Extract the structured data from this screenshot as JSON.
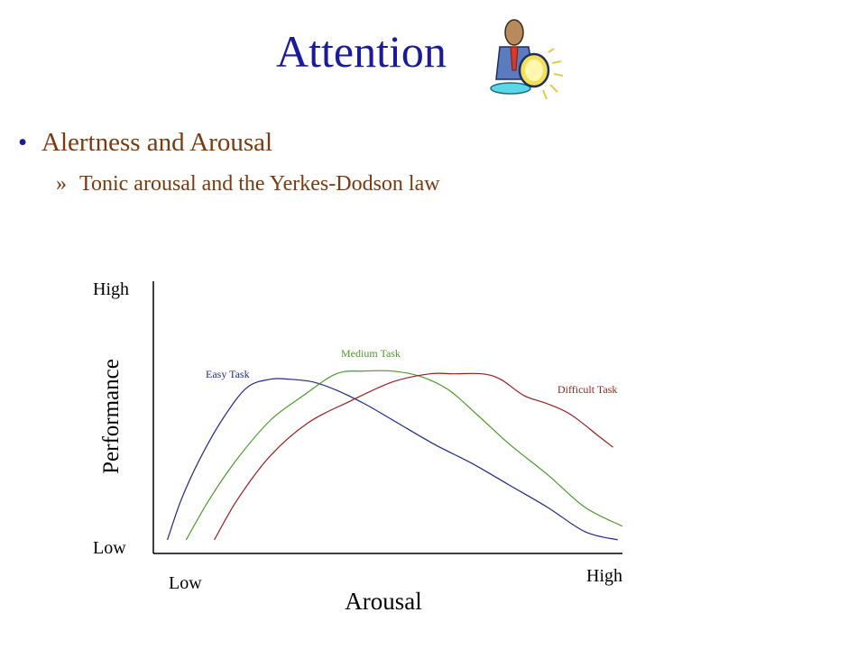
{
  "slide": {
    "title": "Attention",
    "bullet": "Alertness and Arousal",
    "bullet_marker": "•",
    "sub_bullet": "Tonic arousal and the Yerkes-Dodson law",
    "sub_marker": "»",
    "clipart_icon": "presenter-with-spotlight-icon"
  },
  "colors": {
    "title": "#1a1a9c",
    "bullet_text": "#7a3a10",
    "easy": "#1f2a8a",
    "medium": "#4c9a2a",
    "difficult": "#9a1e1e"
  },
  "chart_data": {
    "type": "line",
    "title": "",
    "xlabel": "Arousal",
    "ylabel": "Performance",
    "x_tick_labels": {
      "low": "Low",
      "high": "High"
    },
    "y_tick_labels": {
      "low": "Low",
      "high": "High"
    },
    "xlim": [
      0,
      100
    ],
    "ylim": [
      0,
      100
    ],
    "grid": false,
    "legend": "inline labels",
    "series": [
      {
        "name": "Easy Task",
        "color": "#1f2a8a",
        "x": [
          3,
          6,
          10,
          15,
          20,
          25,
          29,
          34,
          39,
          45,
          52,
          60,
          68,
          76,
          84,
          92,
          99
        ],
        "y": [
          5,
          20,
          35,
          50,
          61,
          64,
          64,
          63,
          60,
          55,
          48,
          40,
          33,
          25,
          17,
          8,
          5
        ]
      },
      {
        "name": "Medium Task",
        "color": "#4c9a2a",
        "x": [
          7,
          12,
          18,
          25,
          32,
          39,
          45,
          51,
          57,
          63,
          69,
          76,
          84,
          92,
          100
        ],
        "y": [
          5,
          20,
          35,
          49,
          58,
          66,
          67,
          67,
          65,
          60,
          51,
          40,
          29,
          17,
          10
        ]
      },
      {
        "name": "Difficult Task",
        "color": "#9a1e1e",
        "x": [
          13,
          18,
          25,
          33,
          42,
          51,
          59,
          64,
          70,
          74,
          79,
          84,
          89,
          95,
          98
        ],
        "y": [
          5,
          20,
          36,
          48,
          56,
          63,
          66,
          66,
          66,
          64,
          58,
          55,
          51,
          43,
          39
        ]
      }
    ]
  }
}
